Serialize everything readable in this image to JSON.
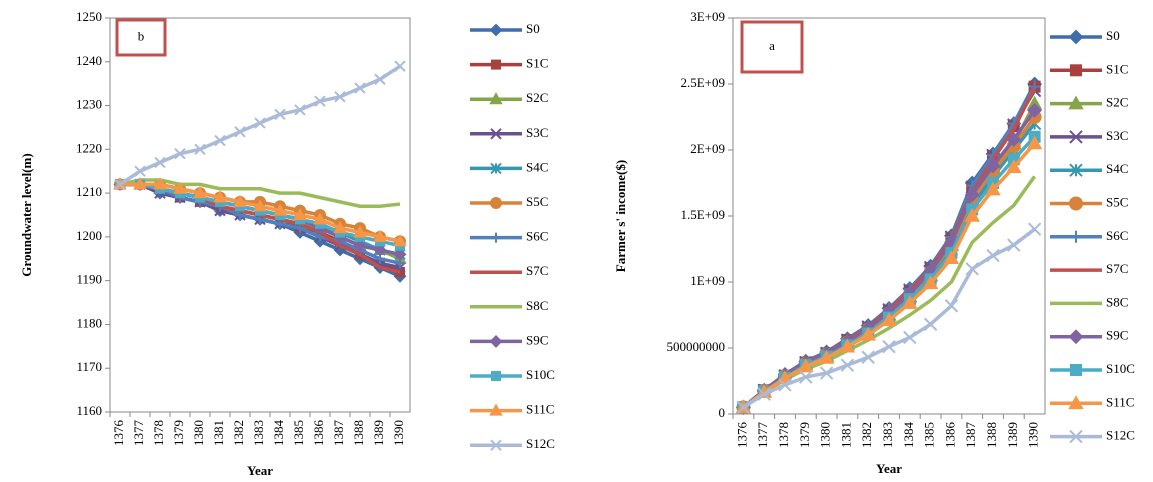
{
  "chart_data": [
    {
      "type": "line",
      "panel_label": "b",
      "y_label": "Groundwater level(m)",
      "x_label": "Year",
      "categories": [
        "1376",
        "1377",
        "1378",
        "1379",
        "1380",
        "1381",
        "1382",
        "1383",
        "1384",
        "1385",
        "1386",
        "1387",
        "1388",
        "1389",
        "1390"
      ],
      "ylim": [
        1160,
        1250
      ],
      "yticks": [
        1160,
        1170,
        1180,
        1190,
        1200,
        1210,
        1220,
        1230,
        1240,
        1250
      ],
      "series": [
        {
          "name": "S0",
          "color": "#3f6ea8",
          "marker": "diamond",
          "values": [
            1212,
            1212,
            1210,
            1209,
            1208,
            1206,
            1205,
            1204,
            1203,
            1201,
            1199,
            1197,
            1195,
            1193,
            1191
          ]
        },
        {
          "name": "S1C",
          "color": "#a8403d",
          "marker": "square",
          "values": [
            1212,
            1212,
            1211,
            1209,
            1208,
            1207,
            1206,
            1205,
            1204,
            1202,
            1201,
            1199,
            1196,
            1194,
            1192
          ]
        },
        {
          "name": "S2C",
          "color": "#86a548",
          "marker": "triangle",
          "values": [
            1212,
            1212,
            1211,
            1210,
            1209,
            1207,
            1206,
            1205,
            1204,
            1203,
            1202,
            1200,
            1198,
            1197,
            1195
          ]
        },
        {
          "name": "S3C",
          "color": "#6a5190",
          "marker": "x",
          "values": [
            1212,
            1212,
            1210,
            1209,
            1208,
            1206,
            1205,
            1204,
            1203,
            1202,
            1200,
            1198,
            1196,
            1194,
            1193
          ]
        },
        {
          "name": "S4C",
          "color": "#3797b0",
          "marker": "star",
          "values": [
            1212,
            1212,
            1211,
            1210,
            1209,
            1208,
            1207,
            1206,
            1205,
            1204,
            1202,
            1201,
            1199,
            1197,
            1196
          ]
        },
        {
          "name": "S5C",
          "color": "#d7833a",
          "marker": "circle",
          "values": [
            1212,
            1212,
            1212,
            1211,
            1210,
            1209,
            1208,
            1208,
            1207,
            1206,
            1205,
            1203,
            1202,
            1200,
            1199
          ]
        },
        {
          "name": "S6C",
          "color": "#4f81bd",
          "marker": "plus",
          "values": [
            1212,
            1212,
            1211,
            1209,
            1208,
            1207,
            1205,
            1204,
            1203,
            1202,
            1200,
            1199,
            1197,
            1195,
            1194
          ]
        },
        {
          "name": "S7C",
          "color": "#c0504d",
          "marker": "none",
          "values": [
            1212,
            1212,
            1211,
            1210,
            1209,
            1207,
            1206,
            1205,
            1204,
            1203,
            1201,
            1198,
            1196,
            1193,
            1192
          ]
        },
        {
          "name": "S8C",
          "color": "#9bbb59",
          "marker": "none",
          "values": [
            1212,
            1213,
            1213,
            1212,
            1212,
            1211,
            1211,
            1211,
            1210,
            1210,
            1209,
            1208,
            1207,
            1207,
            1207.5
          ]
        },
        {
          "name": "S9C",
          "color": "#8064a2",
          "marker": "diamond",
          "values": [
            1212,
            1212,
            1211,
            1210,
            1209,
            1208,
            1207,
            1206,
            1205,
            1204,
            1202,
            1200,
            1198,
            1197,
            1196
          ]
        },
        {
          "name": "S10C",
          "color": "#4bacc6",
          "marker": "square",
          "values": [
            1212,
            1212,
            1211,
            1210,
            1209,
            1208,
            1207,
            1206,
            1205,
            1204,
            1203,
            1201,
            1200,
            1199,
            1198
          ]
        },
        {
          "name": "S11C",
          "color": "#f79646",
          "marker": "triangle",
          "values": [
            1212,
            1212,
            1212,
            1211,
            1210,
            1209,
            1208,
            1207,
            1206,
            1205,
            1204,
            1202,
            1201,
            1200,
            1199
          ]
        },
        {
          "name": "S12C",
          "color": "#a9bbd9",
          "marker": "x",
          "values": [
            1212,
            1215,
            1217,
            1219,
            1220,
            1222,
            1224,
            1226,
            1228,
            1229,
            1231,
            1232,
            1234,
            1236,
            1239
          ]
        }
      ]
    },
    {
      "type": "line",
      "panel_label": "a",
      "y_label": "Farmer s' income($)",
      "x_label": "Year",
      "categories": [
        "1376",
        "1377",
        "1378",
        "1379",
        "1380",
        "1381",
        "1382",
        "1383",
        "1384",
        "1385",
        "1386",
        "1387",
        "1388",
        "1389",
        "1390"
      ],
      "ylim": [
        0,
        3000000000.0
      ],
      "yticks": [
        0,
        500000000,
        {
          "value": 1000000000.0,
          "label": "1E+09"
        },
        {
          "value": 1500000000.0,
          "label": "1.5E+09"
        },
        {
          "value": 2000000000.0,
          "label": "2E+09"
        },
        {
          "value": 2500000000.0,
          "label": "2.5E+09"
        },
        {
          "value": 3000000000.0,
          "label": "3E+09"
        }
      ],
      "series": [
        {
          "name": "S0",
          "color": "#3f6ea8",
          "marker": "diamond",
          "values": [
            50000000.0,
            180000000.0,
            300000000.0,
            400000000.0,
            470000000.0,
            570000000.0,
            670000000.0,
            800000000.0,
            950000000.0,
            1120000000.0,
            1350000000.0,
            1750000000.0,
            1970000000.0,
            2200000000.0,
            2500000000.0
          ]
        },
        {
          "name": "S1C",
          "color": "#a8403d",
          "marker": "square",
          "values": [
            50000000.0,
            180000000.0,
            290000000.0,
            390000000.0,
            460000000.0,
            560000000.0,
            650000000.0,
            780000000.0,
            930000000.0,
            1100000000.0,
            1330000000.0,
            1700000000.0,
            1950000000.0,
            2180000000.0,
            2480000000.0
          ]
        },
        {
          "name": "S2C",
          "color": "#86a548",
          "marker": "triangle",
          "values": [
            50000000.0,
            170000000.0,
            280000000.0,
            380000000.0,
            440000000.0,
            530000000.0,
            620000000.0,
            750000000.0,
            890000000.0,
            1050000000.0,
            1280000000.0,
            1620000000.0,
            1850000000.0,
            2050000000.0,
            2350000000.0
          ]
        },
        {
          "name": "S3C",
          "color": "#6a5190",
          "marker": "x",
          "values": [
            50000000.0,
            180000000.0,
            290000000.0,
            390000000.0,
            460000000.0,
            560000000.0,
            660000000.0,
            790000000.0,
            940000000.0,
            1110000000.0,
            1340000000.0,
            1720000000.0,
            1960000000.0,
            2190000000.0,
            2450000000.0
          ]
        },
        {
          "name": "S4C",
          "color": "#3797b0",
          "marker": "star",
          "values": [
            50000000.0,
            170000000.0,
            280000000.0,
            370000000.0,
            440000000.0,
            530000000.0,
            620000000.0,
            740000000.0,
            880000000.0,
            1040000000.0,
            1250000000.0,
            1580000000.0,
            1800000000.0,
            2000000000.0,
            2200000000.0
          ]
        },
        {
          "name": "S5C",
          "color": "#d7833a",
          "marker": "circle",
          "values": [
            50000000.0,
            175000000.0,
            285000000.0,
            380000000.0,
            450000000.0,
            540000000.0,
            640000000.0,
            760000000.0,
            900000000.0,
            1070000000.0,
            1280000000.0,
            1620000000.0,
            1840000000.0,
            2030000000.0,
            2250000000.0
          ]
        },
        {
          "name": "S6C",
          "color": "#4f81bd",
          "marker": "plus",
          "values": [
            50000000.0,
            180000000.0,
            295000000.0,
            395000000.0,
            465000000.0,
            565000000.0,
            665000000.0,
            795000000.0,
            945000000.0,
            1110000000.0,
            1340000000.0,
            1730000000.0,
            1960000000.0,
            2200000000.0,
            2480000000.0
          ]
        },
        {
          "name": "S7C",
          "color": "#c0504d",
          "marker": "none",
          "values": [
            50000000.0,
            180000000.0,
            290000000.0,
            390000000.0,
            460000000.0,
            560000000.0,
            660000000.0,
            790000000.0,
            940000000.0,
            1100000000.0,
            1330000000.0,
            1680000000.0,
            1930000000.0,
            2160000000.0,
            2470000000.0
          ]
        },
        {
          "name": "S8C",
          "color": "#9bbb59",
          "marker": "none",
          "values": [
            50000000.0,
            160000000.0,
            260000000.0,
            340000000.0,
            400000000.0,
            480000000.0,
            560000000.0,
            650000000.0,
            750000000.0,
            860000000.0,
            1000000000.0,
            1300000000.0,
            1450000000.0,
            1580000000.0,
            1800000000.0
          ]
        },
        {
          "name": "S9C",
          "color": "#8064a2",
          "marker": "diamond",
          "values": [
            50000000.0,
            175000000.0,
            285000000.0,
            385000000.0,
            455000000.0,
            550000000.0,
            650000000.0,
            770000000.0,
            910000000.0,
            1080000000.0,
            1300000000.0,
            1660000000.0,
            1880000000.0,
            2080000000.0,
            2300000000.0
          ]
        },
        {
          "name": "S10C",
          "color": "#4bacc6",
          "marker": "square",
          "values": [
            50000000.0,
            170000000.0,
            275000000.0,
            370000000.0,
            435000000.0,
            520000000.0,
            610000000.0,
            730000000.0,
            870000000.0,
            1020000000.0,
            1220000000.0,
            1550000000.0,
            1750000000.0,
            1930000000.0,
            2100000000.0
          ]
        },
        {
          "name": "S11C",
          "color": "#f79646",
          "marker": "triangle",
          "values": [
            50000000.0,
            165000000.0,
            270000000.0,
            360000000.0,
            425000000.0,
            510000000.0,
            600000000.0,
            710000000.0,
            840000000.0,
            990000000.0,
            1180000000.0,
            1500000000.0,
            1700000000.0,
            1870000000.0,
            2050000000.0
          ]
        },
        {
          "name": "S12C",
          "color": "#a9bbd9",
          "marker": "x",
          "values": [
            50000000.0,
            150000000.0,
            220000000.0,
            280000000.0,
            310000000.0,
            370000000.0,
            430000000.0,
            510000000.0,
            580000000.0,
            680000000.0,
            820000000.0,
            1100000000.0,
            1200000000.0,
            1280000000.0,
            1400000000.0
          ]
        }
      ]
    }
  ]
}
